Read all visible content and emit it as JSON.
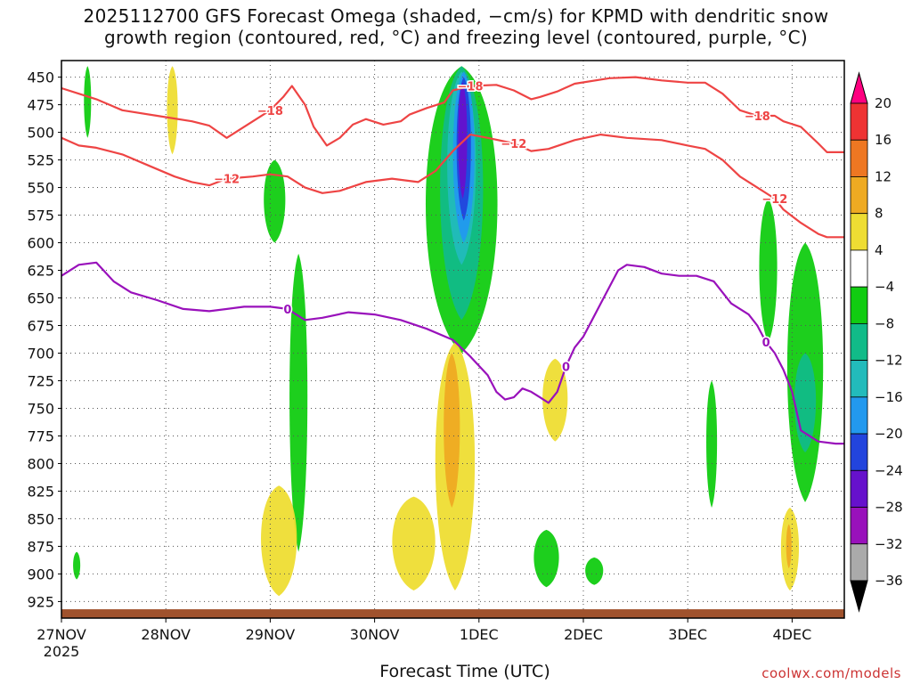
{
  "title": {
    "line1": "2025112700 GFS Forecast Omega (shaded, −cm/s) for KPMD with dendritic snow",
    "line2": "growth region (contoured, red, °C) and freezing level (contoured, purple, °C)"
  },
  "credit": "coolwx.com/models",
  "chart_data": {
    "type": "heatmap",
    "xlabel": "Forecast Time (UTC)",
    "x_axis": {
      "unit": "forecast hour",
      "range": [
        0,
        180
      ],
      "ticks": [
        {
          "hour": 0,
          "label": "27NOV",
          "sublabel": "2025"
        },
        {
          "hour": 24,
          "label": "28NOV"
        },
        {
          "hour": 48,
          "label": "29NOV"
        },
        {
          "hour": 72,
          "label": "30NOV"
        },
        {
          "hour": 96,
          "label": "1DEC"
        },
        {
          "hour": 120,
          "label": "2DEC"
        },
        {
          "hour": 144,
          "label": "3DEC"
        },
        {
          "hour": 168,
          "label": "4DEC"
        }
      ]
    },
    "y_axis": {
      "unit": "hPa",
      "range": [
        940,
        435
      ],
      "ticks": [
        450,
        475,
        500,
        525,
        550,
        575,
        600,
        625,
        650,
        675,
        700,
        725,
        750,
        775,
        800,
        825,
        850,
        875,
        900,
        925
      ]
    },
    "grid": "dotted",
    "colorbar": {
      "position": "right",
      "labels": [
        "20",
        "16",
        "12",
        "8",
        "4",
        "−4",
        "−8",
        "−12",
        "−16",
        "−20",
        "−24",
        "−28",
        "−32",
        "−36"
      ],
      "colors": [
        "#ff0080",
        "#ee3333",
        "#ee7722",
        "#eeaa22",
        "#eedd33",
        "#ffffff",
        "#11cc11",
        "#11bb88",
        "#22bbbb",
        "#2299ee",
        "#2244dd",
        "#6611cc",
        "#9911bb",
        "#aaaaaa",
        "#000000"
      ]
    },
    "terrain_color": "#a0522d",
    "contours": [
      {
        "label": "−18",
        "color": "#ee4444",
        "points": [
          [
            0,
            460
          ],
          [
            4,
            465
          ],
          [
            8,
            470
          ],
          [
            14,
            480
          ],
          [
            22,
            485
          ],
          [
            30,
            490
          ],
          [
            34,
            494
          ],
          [
            38,
            505
          ],
          [
            44,
            490
          ],
          [
            48,
            480
          ],
          [
            51,
            468
          ],
          [
            53,
            458
          ],
          [
            56,
            475
          ],
          [
            58,
            495
          ],
          [
            61,
            512
          ],
          [
            64,
            505
          ],
          [
            67,
            493
          ],
          [
            70,
            488
          ],
          [
            74,
            493
          ],
          [
            78,
            490
          ],
          [
            80,
            484
          ],
          [
            84,
            478
          ],
          [
            88,
            473
          ],
          [
            90,
            462
          ],
          [
            94,
            458
          ],
          [
            100,
            457
          ],
          [
            104,
            462
          ],
          [
            108,
            470
          ],
          [
            110,
            468
          ],
          [
            114,
            463
          ],
          [
            118,
            456
          ],
          [
            126,
            451
          ],
          [
            132,
            450
          ],
          [
            138,
            453
          ],
          [
            144,
            455
          ],
          [
            148,
            455
          ],
          [
            152,
            465
          ],
          [
            156,
            480
          ],
          [
            160,
            485
          ],
          [
            164,
            485
          ],
          [
            166,
            490
          ],
          [
            170,
            495
          ],
          [
            174,
            510
          ],
          [
            176,
            518
          ],
          [
            180,
            518
          ]
        ]
      },
      {
        "label": "−12",
        "color": "#ee4444",
        "points": [
          [
            0,
            505
          ],
          [
            4,
            512
          ],
          [
            8,
            514
          ],
          [
            14,
            520
          ],
          [
            20,
            530
          ],
          [
            26,
            540
          ],
          [
            30,
            545
          ],
          [
            34,
            548
          ],
          [
            38,
            542
          ],
          [
            44,
            540
          ],
          [
            48,
            538
          ],
          [
            52,
            540
          ],
          [
            56,
            550
          ],
          [
            60,
            555
          ],
          [
            64,
            553
          ],
          [
            70,
            545
          ],
          [
            76,
            542
          ],
          [
            82,
            545
          ],
          [
            86,
            535
          ],
          [
            90,
            517
          ],
          [
            94,
            502
          ],
          [
            98,
            505
          ],
          [
            104,
            510
          ],
          [
            108,
            517
          ],
          [
            112,
            515
          ],
          [
            118,
            507
          ],
          [
            124,
            502
          ],
          [
            130,
            505
          ],
          [
            138,
            507
          ],
          [
            144,
            512
          ],
          [
            148,
            515
          ],
          [
            152,
            525
          ],
          [
            156,
            540
          ],
          [
            160,
            550
          ],
          [
            164,
            560
          ],
          [
            166,
            570
          ],
          [
            170,
            582
          ],
          [
            174,
            592
          ],
          [
            176,
            595
          ],
          [
            180,
            595
          ]
        ]
      },
      {
        "label": "0",
        "color": "#9911bb",
        "points": [
          [
            0,
            630
          ],
          [
            4,
            620
          ],
          [
            8,
            618
          ],
          [
            12,
            635
          ],
          [
            16,
            645
          ],
          [
            22,
            652
          ],
          [
            28,
            660
          ],
          [
            34,
            662
          ],
          [
            42,
            658
          ],
          [
            48,
            658
          ],
          [
            52,
            660
          ],
          [
            56,
            670
          ],
          [
            60,
            668
          ],
          [
            66,
            663
          ],
          [
            72,
            665
          ],
          [
            78,
            670
          ],
          [
            84,
            678
          ],
          [
            90,
            688
          ],
          [
            94,
            703
          ],
          [
            98,
            720
          ],
          [
            100,
            735
          ],
          [
            102,
            742
          ],
          [
            104,
            740
          ],
          [
            106,
            732
          ],
          [
            108,
            735
          ],
          [
            110,
            740
          ],
          [
            112,
            745
          ],
          [
            114,
            735
          ],
          [
            116,
            712
          ],
          [
            118,
            695
          ],
          [
            120,
            685
          ],
          [
            122,
            670
          ],
          [
            124,
            655
          ],
          [
            126,
            640
          ],
          [
            128,
            625
          ],
          [
            130,
            620
          ],
          [
            134,
            622
          ],
          [
            138,
            628
          ],
          [
            142,
            630
          ],
          [
            146,
            630
          ],
          [
            150,
            635
          ],
          [
            154,
            655
          ],
          [
            158,
            665
          ],
          [
            160,
            675
          ],
          [
            162,
            690
          ],
          [
            164,
            700
          ],
          [
            166,
            715
          ],
          [
            168,
            735
          ],
          [
            170,
            770
          ],
          [
            174,
            780
          ],
          [
            178,
            782
          ],
          [
            180,
            782
          ]
        ]
      }
    ],
    "shaded_regions": [
      {
        "level": "−8",
        "color": "#11cc11",
        "t": [
          82,
          102
        ],
        "p": [
          440,
          700
        ]
      },
      {
        "level": "−12",
        "color": "#11bb88",
        "t": [
          86,
          98
        ],
        "p": [
          440,
          670
        ]
      },
      {
        "level": "−16",
        "color": "#22bbbb",
        "t": [
          88,
          96
        ],
        "p": [
          445,
          620
        ]
      },
      {
        "level": "−20",
        "color": "#2299ee",
        "t": [
          89.5,
          95.5
        ],
        "p": [
          445,
          600
        ]
      },
      {
        "level": "−24",
        "color": "#2244dd",
        "t": [
          90.5,
          94.5
        ],
        "p": [
          450,
          580
        ]
      },
      {
        "level": "−28",
        "color": "#6611cc",
        "t": [
          91,
          93.5
        ],
        "p": [
          455,
          560
        ]
      },
      {
        "level": "4",
        "color": "#eedd33",
        "t": [
          85,
          96
        ],
        "p": [
          690,
          915
        ]
      },
      {
        "level": "8",
        "color": "#eeaa22",
        "t": [
          87.5,
          92
        ],
        "p": [
          700,
          840
        ]
      },
      {
        "level": "−8",
        "color": "#11cc11",
        "t": [
          46,
          52
        ],
        "p": [
          525,
          600
        ]
      },
      {
        "level": "−8",
        "color": "#11cc11",
        "t": [
          52,
          57
        ],
        "p": [
          610,
          880
        ]
      },
      {
        "level": "4",
        "color": "#eedd33",
        "t": [
          45,
          55
        ],
        "p": [
          820,
          920
        ]
      },
      {
        "level": "4",
        "color": "#eedd33",
        "t": [
          75,
          87
        ],
        "p": [
          830,
          915
        ]
      },
      {
        "level": "4",
        "color": "#eedd33",
        "t": [
          110,
          117
        ],
        "p": [
          705,
          780
        ]
      },
      {
        "level": "−8",
        "color": "#11cc11",
        "t": [
          108,
          115
        ],
        "p": [
          860,
          912
        ]
      },
      {
        "level": "−8",
        "color": "#11cc11",
        "t": [
          120,
          125
        ],
        "p": [
          885,
          910
        ]
      },
      {
        "level": "−8",
        "color": "#11cc11",
        "t": [
          148,
          151
        ],
        "p": [
          725,
          840
        ]
      },
      {
        "level": "−8",
        "color": "#11cc11",
        "t": [
          160,
          165
        ],
        "p": [
          560,
          690
        ]
      },
      {
        "level": "−8",
        "color": "#11cc11",
        "t": [
          166,
          176
        ],
        "p": [
          600,
          835
        ]
      },
      {
        "level": "−12",
        "color": "#11bb88",
        "t": [
          168,
          174
        ],
        "p": [
          700,
          790
        ]
      },
      {
        "level": "4",
        "color": "#eedd33",
        "t": [
          165,
          170
        ],
        "p": [
          840,
          915
        ]
      },
      {
        "level": "8",
        "color": "#eeaa22",
        "t": [
          166.5,
          168
        ],
        "p": [
          855,
          895
        ]
      },
      {
        "level": "−8",
        "color": "#11cc11",
        "t": [
          5,
          7
        ],
        "p": [
          440,
          505
        ]
      },
      {
        "level": "4",
        "color": "#eedd33",
        "t": [
          24,
          27
        ],
        "p": [
          440,
          520
        ]
      },
      {
        "level": "−8",
        "color": "#11cc11",
        "t": [
          2.5,
          4.5
        ],
        "p": [
          880,
          905
        ]
      }
    ]
  }
}
